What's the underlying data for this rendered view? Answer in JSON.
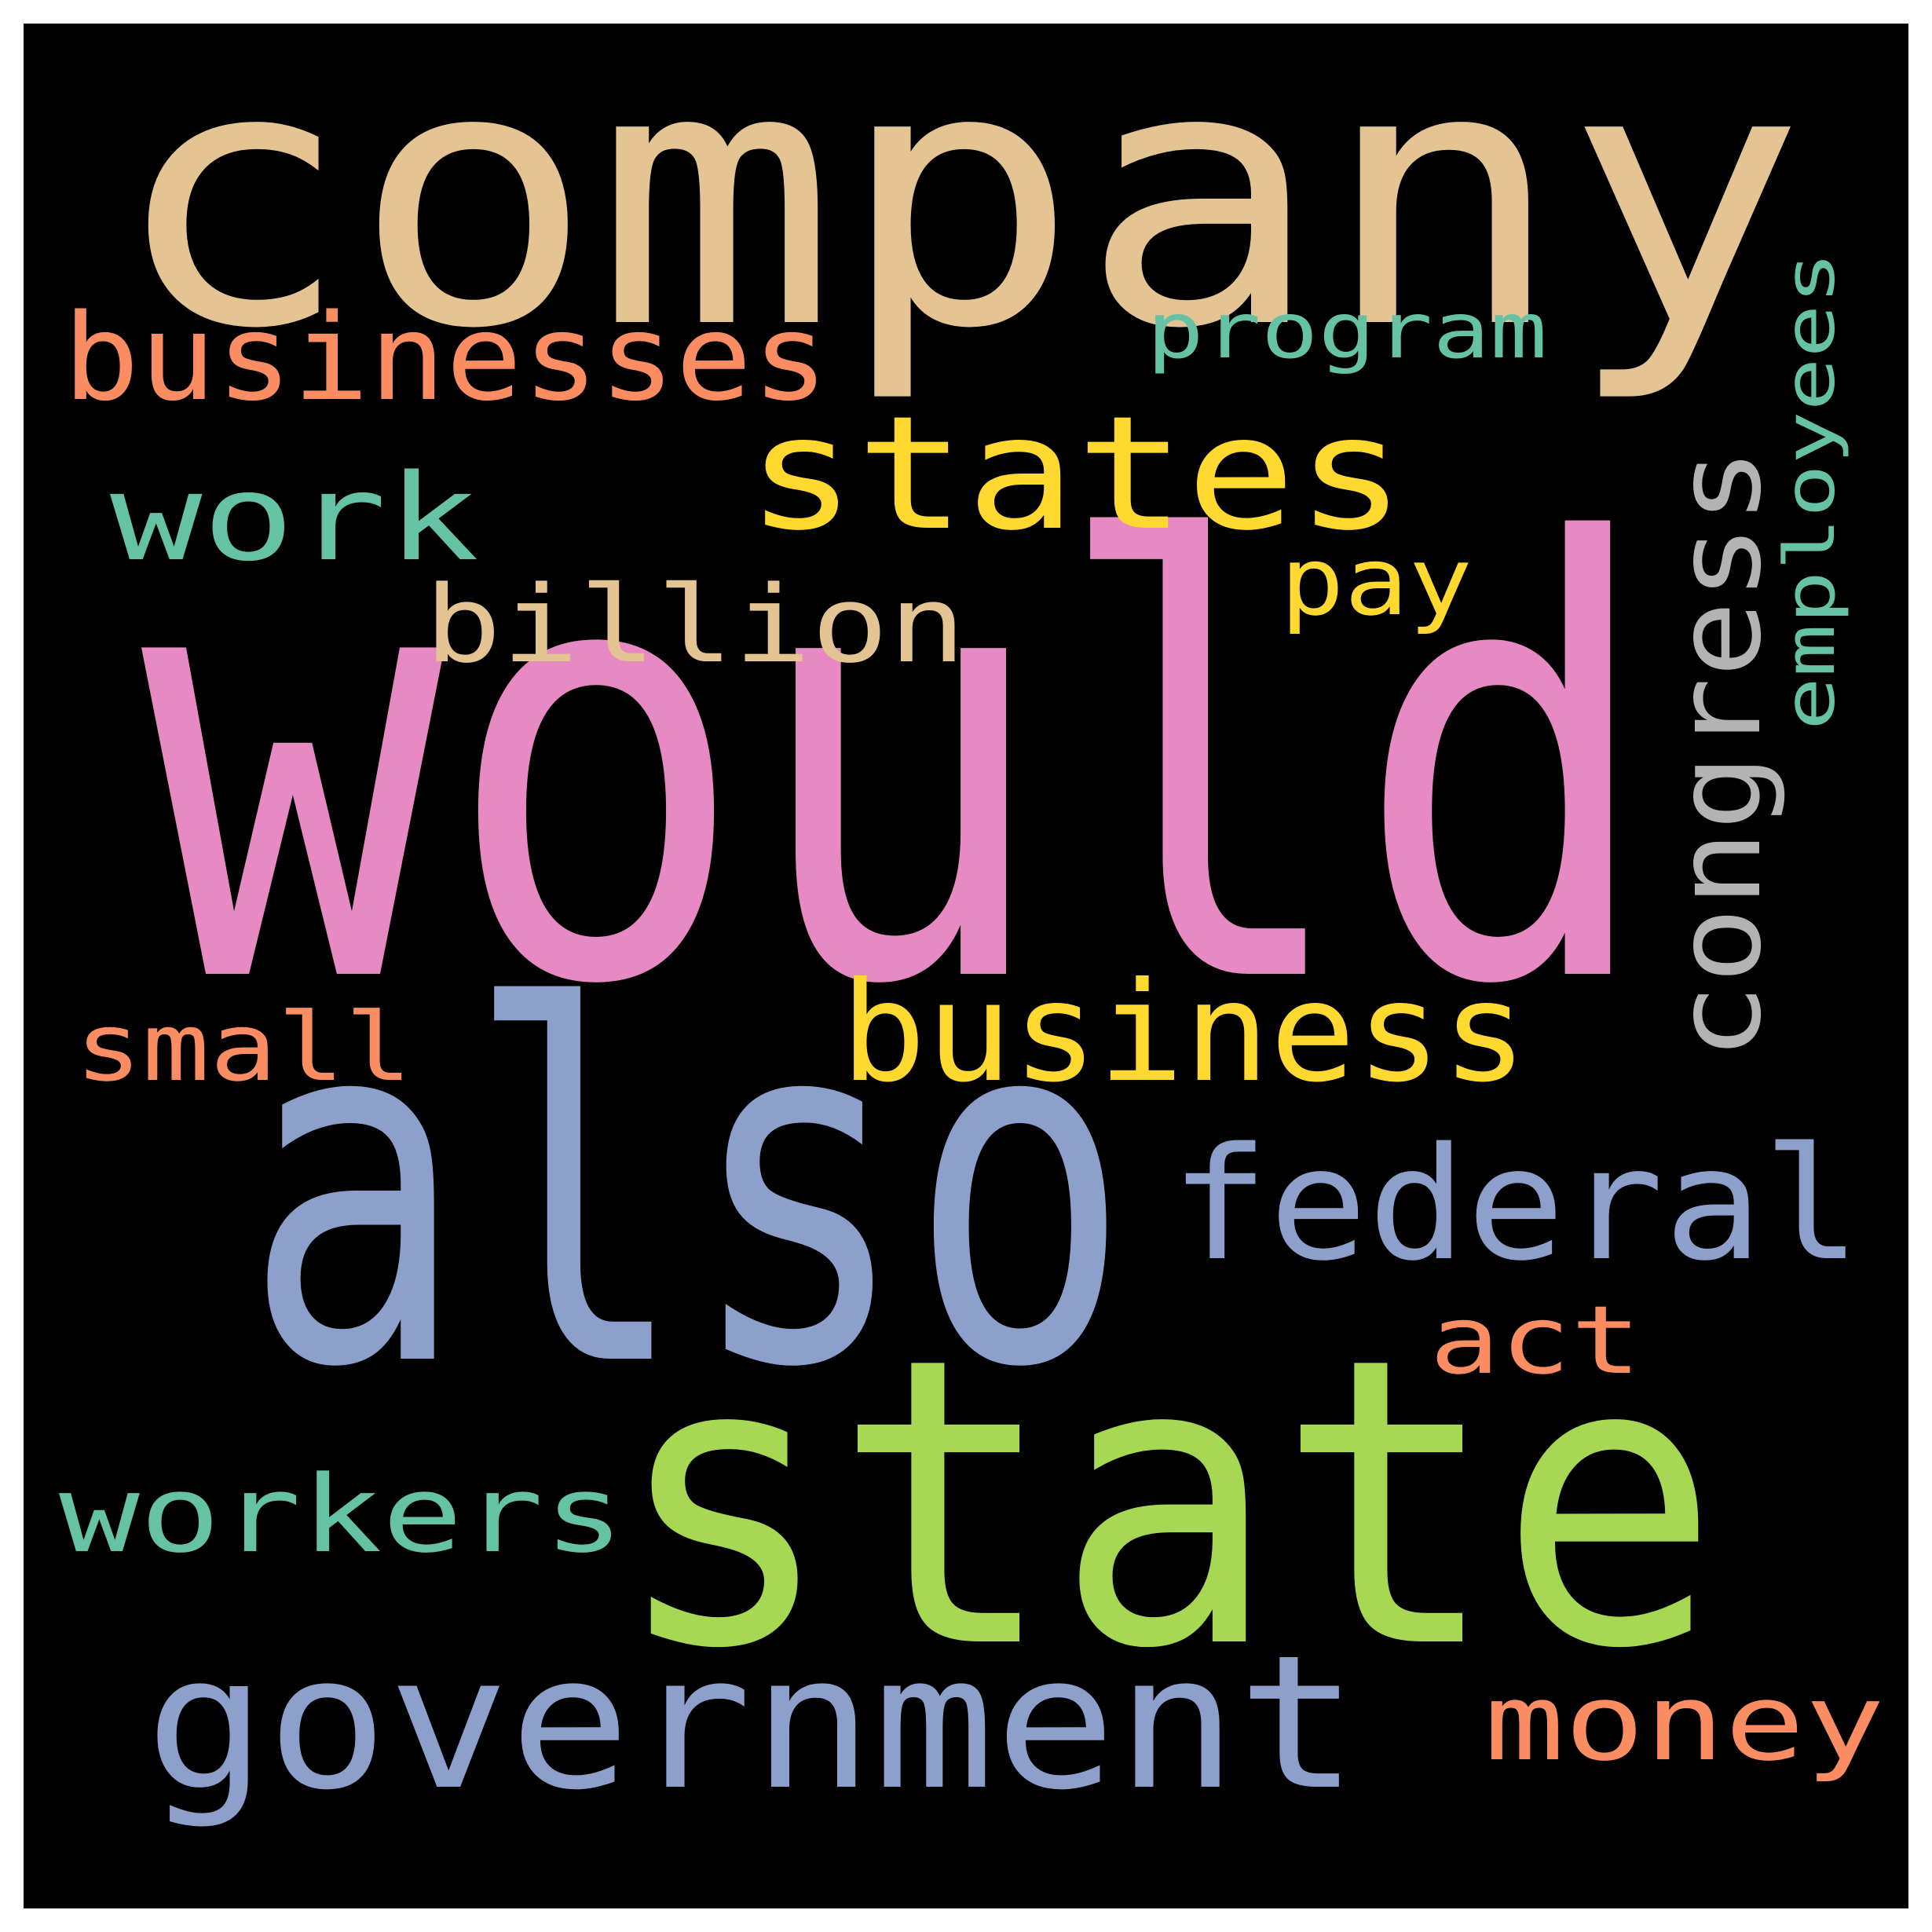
{
  "background": "#000000",
  "frame_color": "#ffffff",
  "words": [
    {
      "text": "company",
      "color": "#e5c494",
      "rotated": false
    },
    {
      "text": "would",
      "color": "#e78ac3",
      "rotated": false
    },
    {
      "text": "also",
      "color": "#8da0cb",
      "rotated": false
    },
    {
      "text": "state",
      "color": "#a6d854",
      "rotated": false
    },
    {
      "text": "government",
      "color": "#8da0cb",
      "rotated": false
    },
    {
      "text": "states",
      "color": "#ffd92f",
      "rotated": false
    },
    {
      "text": "federal",
      "color": "#8da0cb",
      "rotated": false
    },
    {
      "text": "business",
      "color": "#ffd92f",
      "rotated": false
    },
    {
      "text": "businesses",
      "color": "#fc8d62",
      "rotated": false
    },
    {
      "text": "congress",
      "color": "#b3b3b3",
      "rotated": true
    },
    {
      "text": "work",
      "color": "#66c2a5",
      "rotated": false
    },
    {
      "text": "billion",
      "color": "#e5c494",
      "rotated": false
    },
    {
      "text": "workers",
      "color": "#66c2a5",
      "rotated": false
    },
    {
      "text": "money",
      "color": "#fc8d62",
      "rotated": false
    },
    {
      "text": "small",
      "color": "#fc8d62",
      "rotated": false
    },
    {
      "text": "act",
      "color": "#fc8d62",
      "rotated": false
    },
    {
      "text": "program",
      "color": "#66c2a5",
      "rotated": false
    },
    {
      "text": "pay",
      "color": "#ffd92f",
      "rotated": false
    },
    {
      "text": "employees",
      "color": "#66c2a5",
      "rotated": true
    }
  ]
}
